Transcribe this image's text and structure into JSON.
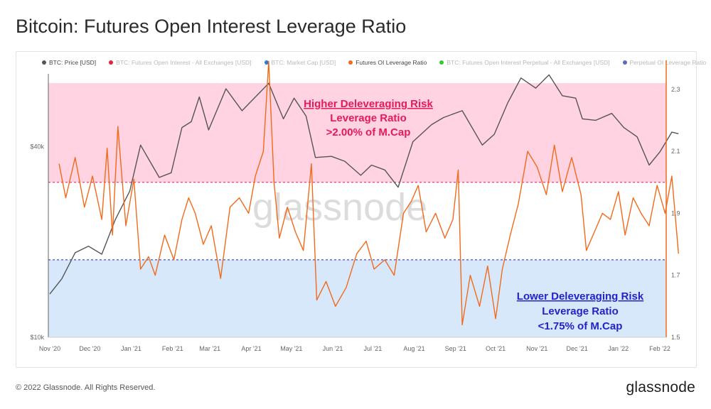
{
  "page": {
    "title": "Bitcoin: Futures Open Interest Leverage Ratio",
    "copyright": "© 2022 Glassnode. All Rights Reserved.",
    "brand": "glassnode",
    "watermark": "glassnode"
  },
  "legend": [
    {
      "label": "BTC: Price [USD]",
      "color": "#555555",
      "active": true
    },
    {
      "label": "BTC: Futures Open Interest - All Exchanges [USD]",
      "color": "#e8213c",
      "active": false
    },
    {
      "label": "BTC: Market Cap [USD]",
      "color": "#2e7bd6",
      "active": false
    },
    {
      "label": "Futures OI Leverage Ratio",
      "color": "#f26a1b",
      "active": true
    },
    {
      "label": "BTC: Futures Open Interest Perpetual - All Exchanges [USD]",
      "color": "#33cc33",
      "active": false
    },
    {
      "label": "Perpetual OI Leverage Ratio",
      "color": "#5b6abf",
      "active": false
    }
  ],
  "annotations": {
    "high": {
      "title": "Higher Deleveraging Risk",
      "line1": "Leverage Ratio",
      "line2": ">2.00% of M.Cap",
      "title_color": "#e8195a",
      "color": "#e8195a"
    },
    "low": {
      "title": "Lower Deleveraging Risk",
      "line1": "Leverage Ratio",
      "line2": "<1.75% of M.Cap",
      "title_color": "#2323c8",
      "color": "#2323c8"
    }
  },
  "chart_data": {
    "type": "line",
    "x_tick_labels": [
      "Nov '20",
      "Dec '20",
      "Jan '21",
      "Feb '21",
      "Mar '21",
      "Apr '21",
      "May '21",
      "Jun '21",
      "Jul '21",
      "Aug '21",
      "Sep '21",
      "Oct '21",
      "Nov '21",
      "Dec '21",
      "Jan '22",
      "Feb '22"
    ],
    "x_tick_dates": [
      "2020-11-01",
      "2020-12-01",
      "2021-01-01",
      "2021-02-01",
      "2021-03-01",
      "2021-04-01",
      "2021-05-01",
      "2021-06-01",
      "2021-07-01",
      "2021-08-01",
      "2021-09-01",
      "2021-10-01",
      "2021-11-01",
      "2021-12-01",
      "2022-01-01",
      "2022-02-01"
    ],
    "y_left": {
      "scale": "log",
      "range": [
        10000,
        68000
      ],
      "tick_labels": [
        "$10k",
        "$40k"
      ],
      "tick_values": [
        10000,
        40000
      ]
    },
    "y_right": {
      "scale": "linear",
      "range": [
        1.5,
        2.35
      ],
      "tick_labels": [
        "1.5",
        "1.7",
        "1.9",
        "2.1",
        "2.3"
      ],
      "tick_values": [
        1.5,
        1.7,
        1.9,
        2.1,
        2.3
      ]
    },
    "bands": [
      {
        "name": "high-risk",
        "from": 2.0,
        "to": 2.32,
        "color": "#ffd3e1"
      },
      {
        "name": "low-risk",
        "from": 1.5,
        "to": 1.75,
        "color": "#d6e8fa"
      }
    ],
    "thresholds": [
      {
        "value": 2.0,
        "color": "#e8195a"
      },
      {
        "value": 1.75,
        "color": "#2323c8"
      }
    ],
    "series": [
      {
        "name": "BTC: Price [USD]",
        "axis": "left",
        "color": "#555555",
        "points": [
          [
            "2020-11-01",
            13700
          ],
          [
            "2020-11-10",
            15300
          ],
          [
            "2020-11-20",
            18500
          ],
          [
            "2020-11-30",
            19400
          ],
          [
            "2020-12-10",
            18300
          ],
          [
            "2020-12-20",
            23500
          ],
          [
            "2020-12-31",
            29000
          ],
          [
            "2021-01-08",
            40500
          ],
          [
            "2021-01-15",
            36000
          ],
          [
            "2021-01-22",
            32000
          ],
          [
            "2021-01-31",
            33100
          ],
          [
            "2021-02-08",
            46000
          ],
          [
            "2021-02-15",
            48000
          ],
          [
            "2021-02-21",
            57500
          ],
          [
            "2021-02-28",
            45200
          ],
          [
            "2021-03-13",
            61000
          ],
          [
            "2021-03-25",
            52000
          ],
          [
            "2021-04-05",
            58000
          ],
          [
            "2021-04-14",
            63500
          ],
          [
            "2021-04-25",
            49000
          ],
          [
            "2021-05-03",
            57000
          ],
          [
            "2021-05-12",
            50000
          ],
          [
            "2021-05-19",
            37000
          ],
          [
            "2021-05-31",
            37300
          ],
          [
            "2021-06-10",
            36000
          ],
          [
            "2021-06-22",
            32500
          ],
          [
            "2021-06-30",
            35000
          ],
          [
            "2021-07-10",
            33800
          ],
          [
            "2021-07-20",
            29800
          ],
          [
            "2021-07-31",
            41500
          ],
          [
            "2021-08-14",
            47000
          ],
          [
            "2021-08-23",
            49500
          ],
          [
            "2021-09-06",
            52000
          ],
          [
            "2021-09-21",
            40500
          ],
          [
            "2021-09-30",
            43800
          ],
          [
            "2021-10-10",
            55000
          ],
          [
            "2021-10-20",
            66000
          ],
          [
            "2021-10-31",
            61300
          ],
          [
            "2021-11-10",
            67500
          ],
          [
            "2021-11-20",
            58000
          ],
          [
            "2021-11-30",
            57000
          ],
          [
            "2021-12-05",
            49000
          ],
          [
            "2021-12-15",
            48500
          ],
          [
            "2021-12-27",
            51000
          ],
          [
            "2022-01-05",
            46000
          ],
          [
            "2022-01-15",
            43000
          ],
          [
            "2022-01-24",
            35000
          ],
          [
            "2022-02-01",
            38500
          ],
          [
            "2022-02-10",
            44500
          ],
          [
            "2022-02-15",
            44000
          ]
        ]
      },
      {
        "name": "Futures OI Leverage Ratio",
        "axis": "right",
        "color": "#f26a1b",
        "points": [
          [
            "2020-11-08",
            2.06
          ],
          [
            "2020-11-13",
            1.95
          ],
          [
            "2020-11-20",
            2.08
          ],
          [
            "2020-11-27",
            1.92
          ],
          [
            "2020-12-03",
            2.02
          ],
          [
            "2020-12-10",
            1.88
          ],
          [
            "2020-12-14",
            2.11
          ],
          [
            "2020-12-18",
            1.83
          ],
          [
            "2020-12-22",
            2.18
          ],
          [
            "2020-12-28",
            1.86
          ],
          [
            "2021-01-03",
            2.01
          ],
          [
            "2021-01-08",
            1.72
          ],
          [
            "2021-01-14",
            1.76
          ],
          [
            "2021-01-19",
            1.7
          ],
          [
            "2021-01-26",
            1.83
          ],
          [
            "2021-02-02",
            1.75
          ],
          [
            "2021-02-08",
            1.88
          ],
          [
            "2021-02-13",
            1.95
          ],
          [
            "2021-02-18",
            1.9
          ],
          [
            "2021-02-24",
            1.8
          ],
          [
            "2021-03-02",
            1.86
          ],
          [
            "2021-03-09",
            1.69
          ],
          [
            "2021-03-16",
            1.92
          ],
          [
            "2021-03-23",
            1.95
          ],
          [
            "2021-03-30",
            1.9
          ],
          [
            "2021-04-04",
            2.02
          ],
          [
            "2021-04-10",
            2.1
          ],
          [
            "2021-04-14",
            2.39
          ],
          [
            "2021-04-18",
            2.0
          ],
          [
            "2021-04-22",
            1.82
          ],
          [
            "2021-04-28",
            1.92
          ],
          [
            "2021-05-04",
            1.84
          ],
          [
            "2021-05-10",
            1.78
          ],
          [
            "2021-05-16",
            2.06
          ],
          [
            "2021-05-20",
            1.62
          ],
          [
            "2021-05-27",
            1.68
          ],
          [
            "2021-06-03",
            1.6
          ],
          [
            "2021-06-11",
            1.66
          ],
          [
            "2021-06-19",
            1.77
          ],
          [
            "2021-06-26",
            1.81
          ],
          [
            "2021-07-02",
            1.72
          ],
          [
            "2021-07-10",
            1.75
          ],
          [
            "2021-07-17",
            1.7
          ],
          [
            "2021-07-24",
            1.9
          ],
          [
            "2021-07-30",
            1.94
          ],
          [
            "2021-08-04",
            1.99
          ],
          [
            "2021-08-10",
            1.84
          ],
          [
            "2021-08-17",
            1.9
          ],
          [
            "2021-08-24",
            1.82
          ],
          [
            "2021-08-30",
            1.88
          ],
          [
            "2021-09-03",
            2.04
          ],
          [
            "2021-09-06",
            1.54
          ],
          [
            "2021-09-12",
            1.7
          ],
          [
            "2021-09-19",
            1.6
          ],
          [
            "2021-09-25",
            1.73
          ],
          [
            "2021-10-01",
            1.56
          ],
          [
            "2021-10-06",
            1.72
          ],
          [
            "2021-10-12",
            1.83
          ],
          [
            "2021-10-18",
            1.93
          ],
          [
            "2021-10-25",
            2.1
          ],
          [
            "2021-11-01",
            2.05
          ],
          [
            "2021-11-08",
            1.96
          ],
          [
            "2021-11-14",
            2.12
          ],
          [
            "2021-11-20",
            1.97
          ],
          [
            "2021-11-27",
            2.08
          ],
          [
            "2021-12-04",
            1.96
          ],
          [
            "2021-12-08",
            1.78
          ],
          [
            "2021-12-14",
            1.84
          ],
          [
            "2021-12-20",
            1.9
          ],
          [
            "2021-12-26",
            1.88
          ],
          [
            "2022-01-01",
            1.97
          ],
          [
            "2022-01-06",
            1.83
          ],
          [
            "2022-01-12",
            1.95
          ],
          [
            "2022-01-18",
            1.9
          ],
          [
            "2022-01-24",
            1.86
          ],
          [
            "2022-01-30",
            1.99
          ],
          [
            "2022-02-05",
            1.9
          ],
          [
            "2022-02-10",
            2.02
          ],
          [
            "2022-02-15",
            1.77
          ]
        ]
      }
    ]
  }
}
